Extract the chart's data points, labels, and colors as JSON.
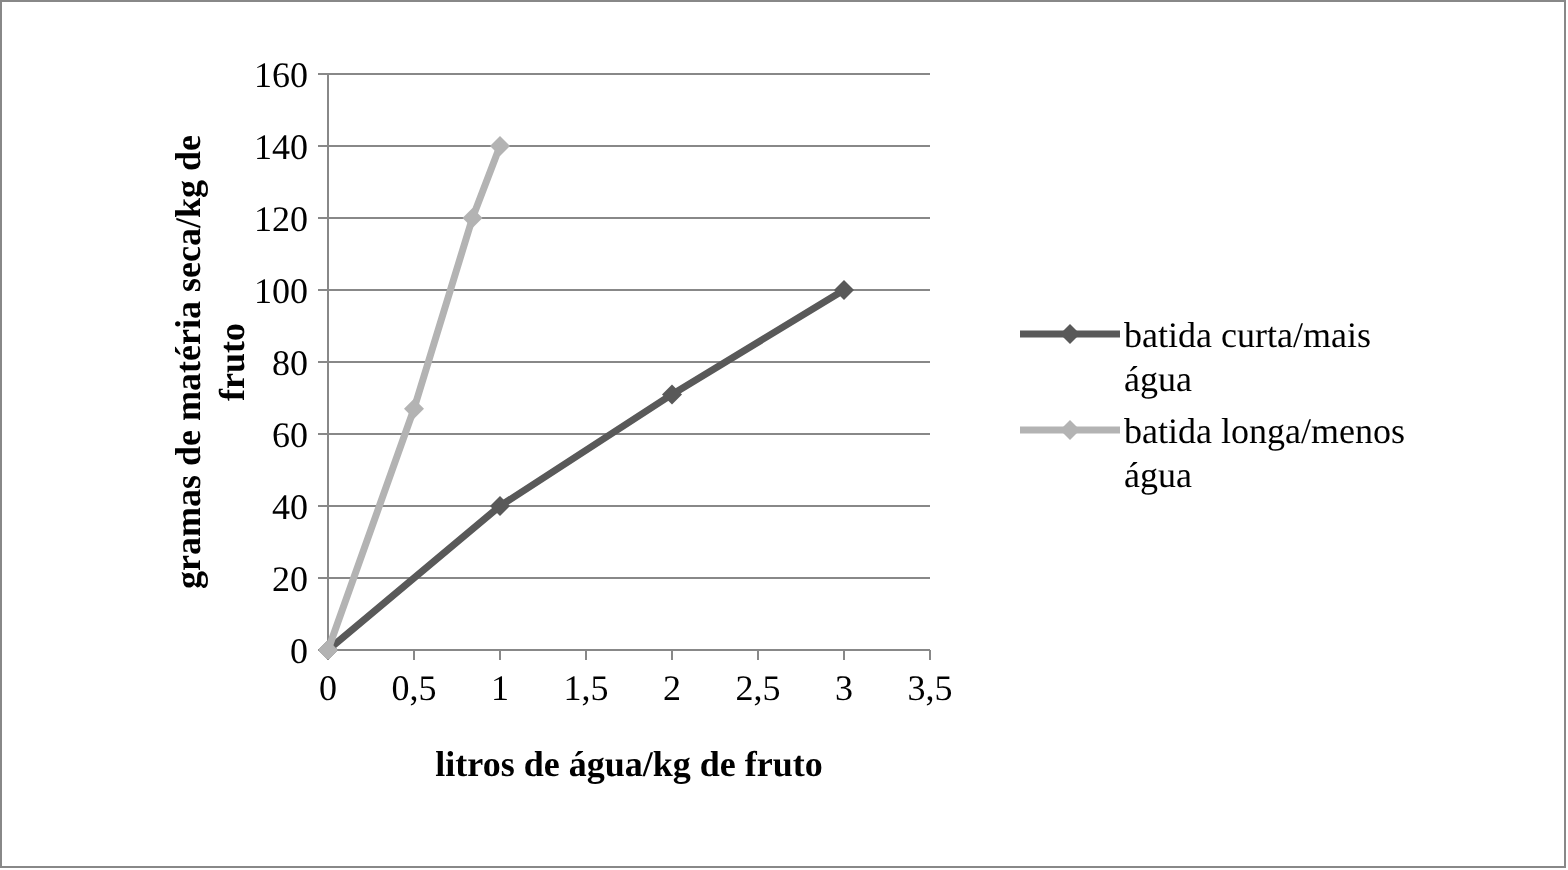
{
  "chart_data": {
    "type": "line",
    "xlabel": "litros de água/kg de fruto",
    "ylabel": "gramas de matéria seca/kg de fruto",
    "xlim": [
      0,
      3.5
    ],
    "xticks": [
      {
        "value": 0,
        "label": "0"
      },
      {
        "value": 0.5,
        "label": "0,5"
      },
      {
        "value": 1,
        "label": "1"
      },
      {
        "value": 1.5,
        "label": "1,5"
      },
      {
        "value": 2,
        "label": "2"
      },
      {
        "value": 2.5,
        "label": "2,5"
      },
      {
        "value": 3,
        "label": "3"
      },
      {
        "value": 3.5,
        "label": "3,5"
      }
    ],
    "ylim": [
      0,
      160
    ],
    "yticks": [
      0,
      20,
      40,
      60,
      80,
      100,
      120,
      140,
      160
    ],
    "grid": "y",
    "legend": "right",
    "marker": "diamond",
    "line_style": "solid",
    "series": [
      {
        "name": "batida curta/mais água",
        "color": "#595959",
        "x": [
          0,
          1,
          2,
          3
        ],
        "values": [
          0,
          40,
          71,
          100
        ]
      },
      {
        "name": "batida longa/menos água",
        "color": "#b3b3b3",
        "x": [
          0,
          0.5,
          0.84,
          1
        ],
        "values": [
          0,
          67,
          120,
          140
        ]
      }
    ]
  }
}
